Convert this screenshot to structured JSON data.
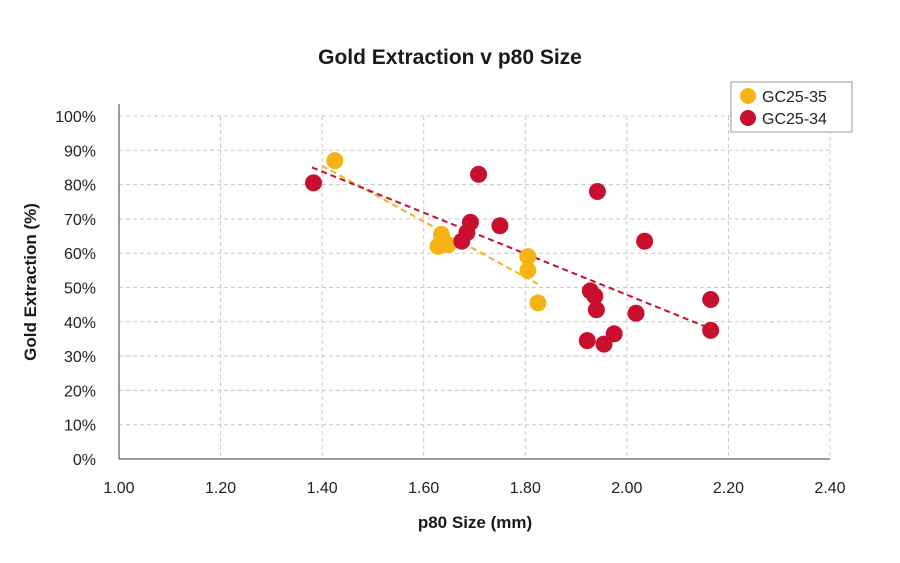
{
  "chart_data": {
    "type": "scatter",
    "title": "Gold Extraction v p80 Size",
    "xlabel": "p80 Size (mm)",
    "ylabel": "Gold Extraction (%)",
    "xlim": [
      1.0,
      2.4
    ],
    "ylim": [
      0,
      100
    ],
    "x_ticks": [
      1.0,
      1.2,
      1.4,
      1.6,
      1.8,
      2.0,
      2.2,
      2.4
    ],
    "x_tick_labels": [
      "1.00",
      "1.20",
      "1.40",
      "1.60",
      "1.80",
      "2.00",
      "2.20",
      "2.40"
    ],
    "y_ticks": [
      0,
      10,
      20,
      30,
      40,
      50,
      60,
      70,
      80,
      90,
      100
    ],
    "y_tick_labels": [
      "0%",
      "10%",
      "20%",
      "30%",
      "40%",
      "50%",
      "60%",
      "70%",
      "80%",
      "90%",
      "100%"
    ],
    "grid": true,
    "legend_position": "top-right",
    "series": [
      {
        "name": "GC25-35",
        "color": "#F5B316",
        "points": [
          {
            "x": 1.425,
            "y": 87
          },
          {
            "x": 1.635,
            "y": 65.5
          },
          {
            "x": 1.628,
            "y": 62
          },
          {
            "x": 1.648,
            "y": 62.5
          },
          {
            "x": 1.805,
            "y": 59
          },
          {
            "x": 1.805,
            "y": 55
          },
          {
            "x": 1.825,
            "y": 45.5
          }
        ],
        "trendline": {
          "x": [
            1.4,
            1.825
          ],
          "y": [
            85.5,
            51
          ]
        }
      },
      {
        "name": "GC25-34",
        "color": "#C8102E",
        "points": [
          {
            "x": 1.383,
            "y": 80.5
          },
          {
            "x": 1.708,
            "y": 83
          },
          {
            "x": 1.942,
            "y": 78
          },
          {
            "x": 1.692,
            "y": 69
          },
          {
            "x": 1.75,
            "y": 68
          },
          {
            "x": 1.685,
            "y": 66
          },
          {
            "x": 1.675,
            "y": 63.5
          },
          {
            "x": 2.035,
            "y": 63.5
          },
          {
            "x": 1.928,
            "y": 49
          },
          {
            "x": 1.937,
            "y": 47.5
          },
          {
            "x": 2.165,
            "y": 46.5
          },
          {
            "x": 1.94,
            "y": 43.5
          },
          {
            "x": 2.018,
            "y": 42.5
          },
          {
            "x": 2.165,
            "y": 37.5
          },
          {
            "x": 1.975,
            "y": 36.5
          },
          {
            "x": 1.922,
            "y": 34.5
          },
          {
            "x": 1.955,
            "y": 33.5
          }
        ],
        "trendline": {
          "x": [
            1.38,
            2.165
          ],
          "y": [
            85,
            38
          ]
        }
      }
    ]
  }
}
